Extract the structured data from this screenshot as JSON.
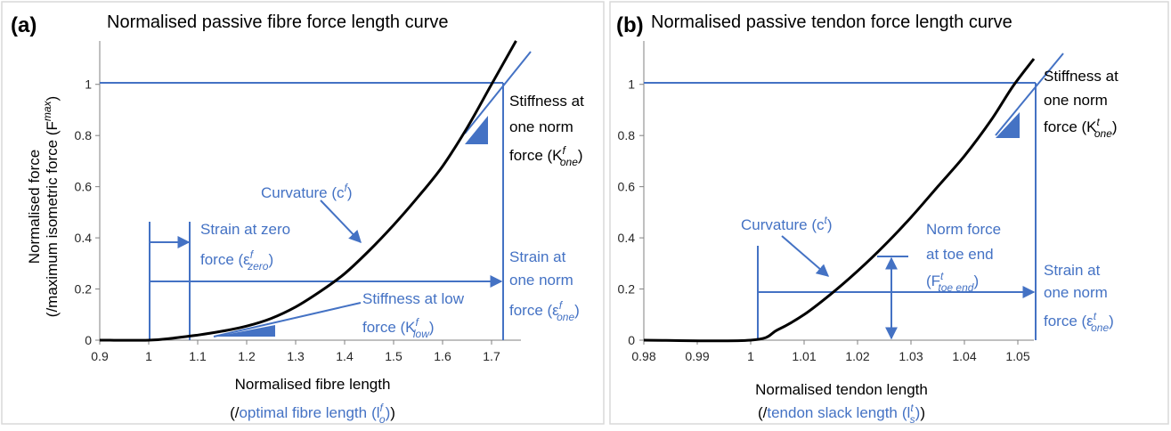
{
  "colors": {
    "curve": "#000000",
    "annotation": "#4472c4",
    "axis": "#808080",
    "text": "#262626",
    "panel_border": "#d9d9d9"
  },
  "chart_data": [
    {
      "type": "line",
      "panel_label": "(a)",
      "title": "Normalised passive fibre force length curve",
      "xlabel": "Normalised fibre length",
      "xlabel_sub_paren_open": "(/",
      "xlabel_sub_text": "optimal fibre length",
      "xlabel_sub_symbol": "(l",
      "xlabel_sub_sup": "f",
      "xlabel_sub_sub": "o",
      "xlabel_sub_close": ")",
      "xlabel_sub_paren_close": ")",
      "ylabel_line1": "Normalised force",
      "ylabel_line2": "(/maximum isometric force (F",
      "ylabel_sup": "max",
      "ylabel_close": ")",
      "xlim": [
        0.9,
        1.76
      ],
      "ylim": [
        0,
        1.1
      ],
      "x_ticks": [
        "0.9",
        "1",
        "1.1",
        "1.2",
        "1.3",
        "1.4",
        "1.5",
        "1.6",
        "1.7"
      ],
      "x_tick_values": [
        0.9,
        1.0,
        1.1,
        1.2,
        1.3,
        1.4,
        1.5,
        1.6,
        1.7
      ],
      "y_ticks": [
        "0",
        "0.2",
        "0.4",
        "0.6",
        "0.8",
        "1"
      ],
      "y_tick_values": [
        0,
        0.2,
        0.4,
        0.6,
        0.8,
        1.0
      ],
      "grid": false,
      "series": [
        {
          "x": [
            0.9,
            1.0,
            1.05,
            1.1,
            1.15,
            1.2,
            1.25,
            1.3,
            1.35,
            1.4,
            1.45,
            1.5,
            1.55,
            1.6,
            1.65,
            1.7,
            1.75
          ],
          "y": [
            0,
            0,
            0.008,
            0.02,
            0.035,
            0.055,
            0.085,
            0.13,
            0.19,
            0.26,
            0.35,
            0.45,
            0.56,
            0.68,
            0.83,
            1.0,
            1.17
          ]
        }
      ],
      "annotations": {
        "curvature_label": "Curvature (c",
        "curvature_sup": "f",
        "curvature_close": ")",
        "strain_zero_line1": "Strain at zero",
        "strain_zero_line2": "force (ε",
        "strain_zero_sup": "f",
        "strain_zero_sub": "zero",
        "strain_zero_close": ")",
        "strain_one_line1": "Strain at",
        "strain_one_line2": "one norm",
        "strain_one_line3": "force (ε",
        "strain_one_sup": "f",
        "strain_one_sub": "one",
        "strain_one_close": ")",
        "stiff_one_line1": "Stiffness at",
        "stiff_one_line2": "one norm",
        "stiff_one_line3": "force (K",
        "stiff_one_sup": "f",
        "stiff_one_sub": "one",
        "stiff_one_close": ")",
        "stiff_low_line1": "Stiffness at low",
        "stiff_low_line2": "force (K",
        "stiff_low_sup": "f",
        "stiff_low_sub": "low",
        "stiff_low_close": ")"
      }
    },
    {
      "type": "line",
      "panel_label": "(b)",
      "title": "Normalised passive tendon force length curve",
      "xlabel": "Normalised tendon length",
      "xlabel_sub_paren_open": "(/",
      "xlabel_sub_text": "tendon slack length",
      "xlabel_sub_symbol": "(l",
      "xlabel_sub_sup": "t",
      "xlabel_sub_sub": "s",
      "xlabel_sub_close": ")",
      "xlabel_sub_paren_close": ")",
      "xlim": [
        0.98,
        1.053
      ],
      "ylim": [
        0,
        1.1
      ],
      "x_ticks": [
        "0.98",
        "0.99",
        "1",
        "1.01",
        "1.02",
        "1.03",
        "1.04",
        "1.05"
      ],
      "x_tick_values": [
        0.98,
        0.99,
        1.0,
        1.01,
        1.02,
        1.03,
        1.04,
        1.05
      ],
      "y_ticks": [
        "0",
        "0.2",
        "0.4",
        "0.6",
        "0.8",
        "1"
      ],
      "y_tick_values": [
        0,
        0.2,
        0.4,
        0.6,
        0.8,
        1.0
      ],
      "grid": false,
      "series": [
        {
          "x": [
            0.98,
            1.0,
            1.005,
            1.01,
            1.015,
            1.02,
            1.025,
            1.03,
            1.035,
            1.04,
            1.045,
            1.049,
            1.053
          ],
          "y": [
            0,
            0,
            0.04,
            0.1,
            0.18,
            0.27,
            0.37,
            0.48,
            0.6,
            0.72,
            0.86,
            0.99,
            1.1
          ]
        }
      ],
      "annotations": {
        "curvature_label": "Curvature (c",
        "curvature_sup": "t",
        "curvature_close": ")",
        "toe_line1": "Norm force",
        "toe_line2": "at toe end",
        "toe_line3": "(F",
        "toe_sup": "t",
        "toe_sub": "toe end",
        "toe_close": ")",
        "strain_one_line1": "Strain at",
        "strain_one_line2": "one norm",
        "strain_one_line3": "force (ε",
        "strain_one_sup": "t",
        "strain_one_sub": "one",
        "strain_one_close": ")",
        "stiff_one_line1": "Stiffness at",
        "stiff_one_line2": "one norm",
        "stiff_one_line3": "force (K",
        "stiff_one_sup": "t",
        "stiff_one_sub": "one",
        "stiff_one_close": ")"
      }
    }
  ]
}
